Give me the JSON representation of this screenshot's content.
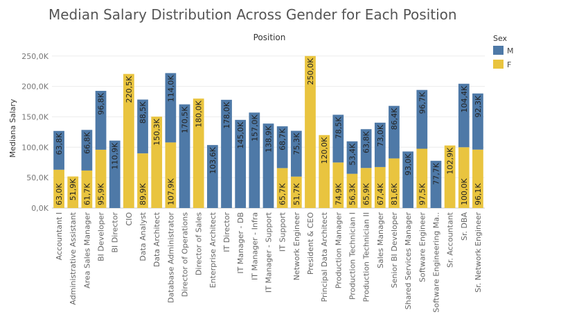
{
  "chart_data": {
    "type": "bar",
    "stacked": true,
    "title": "Median Salary Distribution Across Gender for Each Position",
    "column_header": "Position",
    "ylabel": "Mediana Salary",
    "ylim": [
      0,
      260000
    ],
    "yticks": [
      "0,0K",
      "50,0K",
      "100,0K",
      "150,0K",
      "200,0K",
      "250,0K"
    ],
    "ytick_values": [
      0,
      50000,
      100000,
      150000,
      200000,
      250000
    ],
    "grid": true,
    "legend": {
      "title": "Sex",
      "position": "top-right",
      "items": [
        {
          "label": "M",
          "color": "#4e79a7"
        },
        {
          "label": "F",
          "color": "#e9c43f"
        }
      ]
    },
    "categories": [
      "Accountant I",
      "Administrative Assistant",
      "Area Sales Manager",
      "BI Developer",
      "BI Director",
      "CIO",
      "Data Analyst",
      "Data Architect",
      "Database Administrator",
      "Director of Operations",
      "Director of Sales",
      "Enterprise Architect",
      "IT Director",
      "IT Manager - DB",
      "IT Manager - Infra",
      "IT Manager - Support",
      "IT Support",
      "Network Engineer",
      "President & CEO",
      "Principal Data Architect",
      "Production Manager",
      "Production Technician I",
      "Production Technician II",
      "Sales Manager",
      "Senior BI Developer",
      "Shared Services Manager",
      "Software Engineer",
      "Software Engineering Ma..",
      "Sr. Accountant",
      "Sr. DBA",
      "Sr. Network Engineer"
    ],
    "series": [
      {
        "name": "F",
        "color": "#e9c43f",
        "values": [
          63000,
          51900,
          61700,
          95900,
          null,
          220500,
          89900,
          150300,
          107900,
          null,
          180000,
          null,
          null,
          null,
          null,
          null,
          65700,
          51700,
          250000,
          120000,
          74900,
          56300,
          65900,
          67400,
          81600,
          null,
          97500,
          null,
          102900,
          100000,
          96100
        ],
        "labels": [
          "63,0K",
          "51,9K",
          "61,7K",
          "95,9K",
          "",
          "220,5K",
          "89,9K",
          "150,3K",
          "107,9K",
          "",
          "180,0K",
          "",
          "",
          "",
          "",
          "",
          "65,7K",
          "51,7K",
          "250,0K",
          "120,0K",
          "74,9K",
          "56,3K",
          "65,9K",
          "67,4K",
          "81,6K",
          "",
          "97,5K",
          "",
          "102,9K",
          "100,0K",
          "96,1K"
        ]
      },
      {
        "name": "M",
        "color": "#4e79a7",
        "values": [
          63800,
          null,
          66800,
          96800,
          110900,
          null,
          88500,
          null,
          114000,
          170500,
          null,
          103600,
          178000,
          145000,
          157000,
          138900,
          68700,
          75300,
          null,
          null,
          78500,
          53400,
          63800,
          73000,
          86400,
          93000,
          96700,
          77700,
          null,
          104400,
          92300
        ],
        "labels": [
          "63,8K",
          "",
          "66,8K",
          "96,8K",
          "110,9K",
          "",
          "88,5K",
          "",
          "114,0K",
          "170,5K",
          "",
          "103,6K",
          "178,0K",
          "145,0K",
          "157,0K",
          "138,9K",
          "68,7K",
          "75,3K",
          "",
          "",
          "78,5K",
          "53,4K",
          "63,8K",
          "73,0K",
          "86,4K",
          "93,0K",
          "96,7K",
          "77,7K",
          "",
          "104,4K",
          "92,3K"
        ]
      }
    ]
  }
}
